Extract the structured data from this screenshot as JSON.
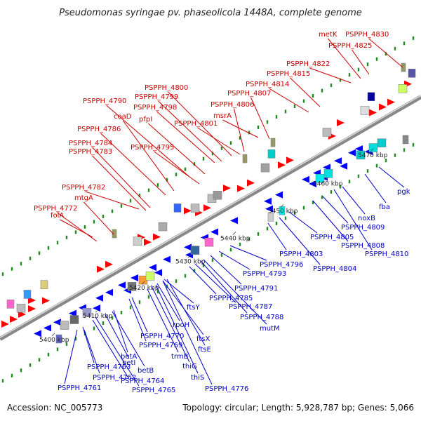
{
  "title": "Pseudomonas syringae pv. phaseolicola 1448A, complete genome",
  "accession": "Accession: NC_005773",
  "stats": "Topology: circular; Length: 5,928,787 bp; Genes: 5,066",
  "colors": {
    "forward": "#ff0000",
    "reverse": "#0000ff",
    "label_forward": "#cc0000",
    "label_reverse": "#0000cc",
    "backbone": "#999999",
    "dots": "#228b22",
    "rrna": "#00cccc",
    "other": "#bbbbbb"
  },
  "ticks": [
    "5400 kbp",
    "5410 kbp",
    "5420 kbp",
    "5430 kbp",
    "5440 kbp",
    "5450 kbp",
    "5460 kbp",
    "5470 kbp"
  ],
  "forward_labels": [
    "folA",
    "PSPPH_4772",
    "mtgA",
    "PSPPH_4782",
    "PSPPH_4783",
    "PSPPH_4784",
    "PSPPH_4786",
    "coaD",
    "PSPPH_4790",
    "PSPPH_4795",
    "pfpI",
    "PSPPH_4798",
    "PSPPH_4799",
    "PSPPH_4800",
    "PSPPH_4801",
    "PSPPH_4806",
    "msrA",
    "PSPPH_4807",
    "PSPPH_4814",
    "PSPPH_4815",
    "PSPPH_4822",
    "metK",
    "PSPPH_4825",
    "PSPPH_4830"
  ],
  "reverse_labels": [
    "PSPPH_4761",
    "PSPPH_4762",
    "PSPPH_4763",
    "PSPPH_4764",
    "PSPPH_4765",
    "betI",
    "betB",
    "betA",
    "PSPPH_4769",
    "PSPPH_4770",
    "trmB",
    "thiG",
    "thiS",
    "PSPPH_4776",
    "rpoH",
    "ftsX",
    "ftsE",
    "ftsY",
    "PSPPH_4785",
    "PSPPH_4787",
    "PSPPH_4788",
    "mutM",
    "PSPPH_4791",
    "PSPPH_4793",
    "PSPPH_4796",
    "PSPPH_4803",
    "PSPPH_4804",
    "PSPPH_4805",
    "PSPPH_4808",
    "PSPPH_4809",
    "PSPPH_4810",
    "noxB",
    "fba",
    "pgk"
  ]
}
